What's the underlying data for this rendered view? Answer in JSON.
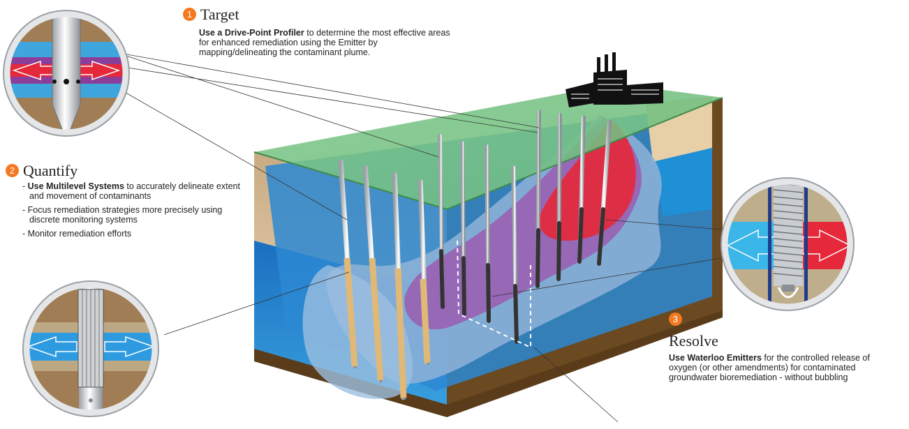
{
  "target": {
    "number": "1",
    "title": "Target",
    "lead": "Use a Drive-Point Profiler",
    "body": " to determine the most effective areas for enhanced remediation using the Emitter by mapping/delineating the contaminant plume."
  },
  "quantify": {
    "number": "2",
    "title": "Quantify",
    "items": [
      {
        "lead": "Use Multilevel Systems",
        "text": " to accurately delineate extent and movement of contaminants"
      },
      {
        "lead": "",
        "text": "Focus remediation strategies more precisely using discrete monitoring systems"
      },
      {
        "lead": "",
        "text": "Monitor remediation efforts"
      }
    ]
  },
  "resolve": {
    "number": "3",
    "title": "Resolve",
    "lead": "Use Waterloo Emitters",
    "body": " for the controlled release of oxygen (or other amendments) for contaminated groundwater bioremediation - without bubbling"
  },
  "colors": {
    "surface_green": "#7dc383",
    "water_blue": "#1f8fd6",
    "plume_red": "#e5283a",
    "plume_purple": "#9a5cb0",
    "soil_tan": "#e7cfa7",
    "soil_brown": "#6b4a22",
    "accent_orange": "#f47920"
  }
}
